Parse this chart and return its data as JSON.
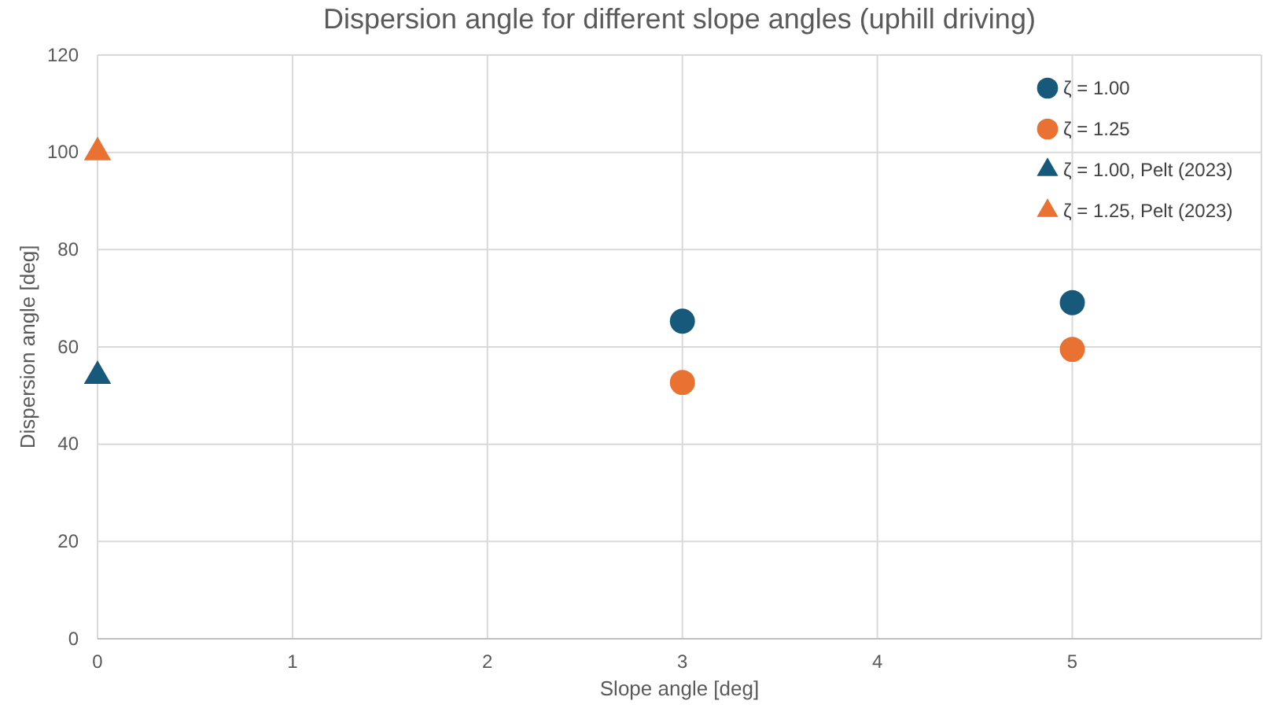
{
  "chart_data": {
    "type": "scatter",
    "title": "Dispersion angle for different slope angles (uphill driving)",
    "xlabel": "Slope angle [deg]",
    "ylabel": "Dispersion angle [deg]",
    "xlim": [
      0,
      5.97
    ],
    "xticks": [
      0,
      1,
      2,
      3,
      4,
      5
    ],
    "ylim": [
      0,
      120
    ],
    "yticks": [
      0,
      20,
      40,
      60,
      80,
      100,
      120
    ],
    "grid": true,
    "legend": "top right",
    "series": [
      {
        "name": "ζ = 1.00",
        "color": "#17597b",
        "marker": "circle",
        "x": [
          3,
          5
        ],
        "values": [
          65.3,
          69.1
        ]
      },
      {
        "name": "ζ = 1.25",
        "color": "#e97132",
        "marker": "circle",
        "x": [
          3,
          5
        ],
        "values": [
          52.7,
          59.5
        ]
      },
      {
        "name": "ζ = 1.00, Pelt (2023)",
        "color": "#17597b",
        "marker": "triangle",
        "x": [
          0
        ],
        "values": [
          54
        ]
      },
      {
        "name": "ζ = 1.25, Pelt (2023)",
        "color": "#e97132",
        "marker": "triangle",
        "x": [
          0
        ],
        "values": [
          100
        ]
      }
    ]
  }
}
